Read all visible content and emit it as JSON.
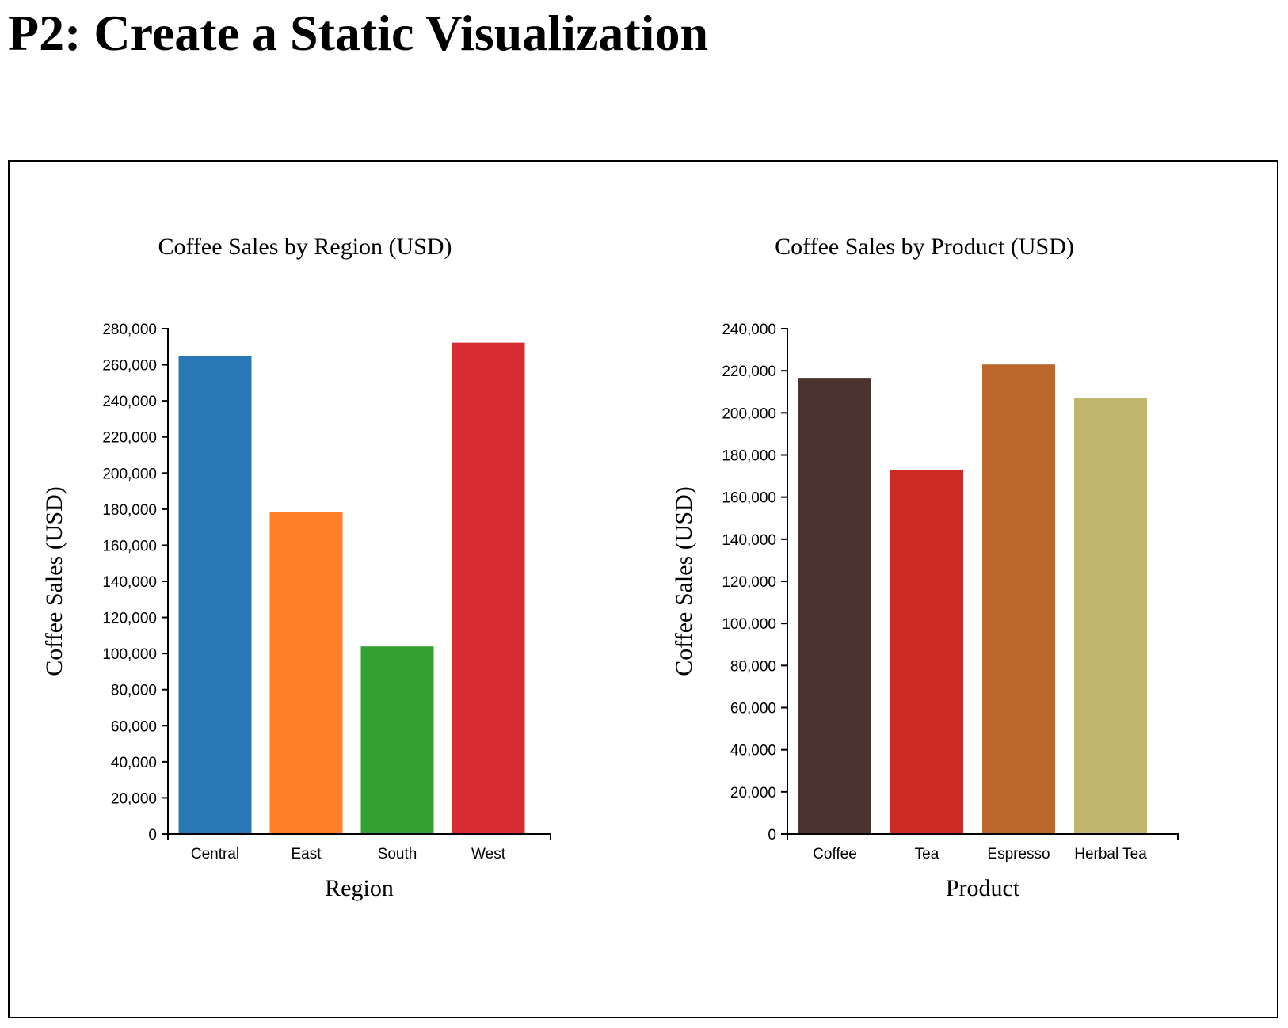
{
  "page": {
    "heading": "P2: Create a Static Visualization"
  },
  "chart_data": [
    {
      "type": "bar",
      "title": "Coffee Sales by Region (USD)",
      "xlabel": "Region",
      "ylabel": "Coffee Sales (USD)",
      "categories": [
        "Central",
        "East",
        "South",
        "West"
      ],
      "values": [
        265045,
        178576,
        103926,
        272264
      ],
      "colors": [
        "#2878b5",
        "#ff7f2a",
        "#33a033",
        "#d62b30"
      ],
      "ylim": [
        0,
        280000
      ],
      "yticks": [
        0,
        20000,
        40000,
        60000,
        80000,
        100000,
        120000,
        140000,
        160000,
        180000,
        200000,
        220000,
        240000,
        260000,
        280000
      ],
      "ytick_labels": [
        "0",
        "20,000",
        "40,000",
        "60,000",
        "80,000",
        "100,000",
        "120,000",
        "140,000",
        "160,000",
        "180,000",
        "200,000",
        "220,000",
        "240,000",
        "260,000",
        "280,000"
      ],
      "grid": false
    },
    {
      "type": "bar",
      "title": "Coffee Sales by Product (USD)",
      "xlabel": "Product",
      "ylabel": "Coffee Sales (USD)",
      "categories": [
        "Coffee",
        "Tea",
        "Espresso",
        "Herbal Tea"
      ],
      "values": [
        216639,
        172773,
        222996,
        207214
      ],
      "colors": [
        "#4b3430",
        "#cc2a22",
        "#bb662a",
        "#c0b66e"
      ],
      "ylim": [
        0,
        240000
      ],
      "yticks": [
        0,
        20000,
        40000,
        60000,
        80000,
        100000,
        120000,
        140000,
        160000,
        180000,
        200000,
        220000,
        240000
      ],
      "ytick_labels": [
        "0",
        "20,000",
        "40,000",
        "60,000",
        "80,000",
        "100,000",
        "120,000",
        "140,000",
        "160,000",
        "180,000",
        "200,000",
        "220,000",
        "240,000"
      ],
      "grid": false
    }
  ]
}
